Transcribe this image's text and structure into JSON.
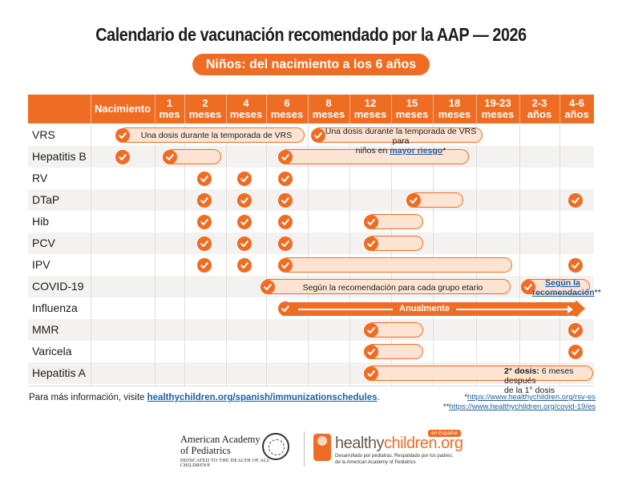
{
  "title": "Calendario de vacunación recomendado por la AAP — 2026",
  "subtitle": "Niños: del nacimiento a los 6 años",
  "columns": [
    {
      "line1": "Nacimiento",
      "line2": ""
    },
    {
      "line1": "1",
      "line2": "mes"
    },
    {
      "line1": "2",
      "line2": "meses"
    },
    {
      "line1": "4",
      "line2": "meses"
    },
    {
      "line1": "6",
      "line2": "meses"
    },
    {
      "line1": "8",
      "line2": "meses"
    },
    {
      "line1": "12",
      "line2": "meses"
    },
    {
      "line1": "15",
      "line2": "meses"
    },
    {
      "line1": "18",
      "line2": "meses"
    },
    {
      "line1": "19-23",
      "line2": "meses"
    },
    {
      "line1": "2-3",
      "line2": "años"
    },
    {
      "line1": "4-6",
      "line2": "años"
    }
  ],
  "vaccines": [
    "VRS",
    "Hepatitis B",
    "RV",
    "DTaP",
    "Hib",
    "PCV",
    "IPV",
    "COVID-19",
    "Influenza",
    "MMR",
    "Varicela",
    "Hepatitis A"
  ],
  "bar_notes": {
    "vrs_1": "Una dosis durante la temporada de VRS",
    "vrs_2_line1": "Una dosis durante la temporada de VRS para",
    "vrs_2_prefix": "niños en ",
    "vrs_2_link": "mayor riesgo",
    "vrs_2_suffix": "*",
    "covid_1": "Según la recomendación para cada grupo etario",
    "covid_2_line1": "Según la",
    "covid_2_line2": "recomendación",
    "covid_2_suffix": "**",
    "influenza": "Anualmente",
    "hepa_bold": "2° dosis:",
    "hepa_rest": " 6 meses después",
    "hepa_line2": "de la 1° dosis"
  },
  "footer": {
    "info_prefix": "Para más información, visite ",
    "info_link": "healthychildren.org/spanish/immunizationschedules",
    "info_suffix": ".",
    "note1_mark": "*",
    "note1_url": "https://www.healthychildren.org/rsv-es",
    "note2_mark": "**",
    "note2_url": "https://www.healthychildren.org/covid-19/es"
  },
  "logos": {
    "aap_line1": "American Academy",
    "aap_line2": "of Pediatrics",
    "aap_tagline": "DEDICATED TO THE HEALTH OF ALL CHILDREN®",
    "hc_part1": "healthy",
    "hc_part2": "children.org",
    "hc_badge": "en Español",
    "hc_tag_line1": "Desarrollado por pediatras. Respaldado por los padres.",
    "hc_tag_line2": "de la American Academy of Pediatrics"
  },
  "colors": {
    "accent": "#ef6c23",
    "bar_fill": "#fde4d2",
    "link": "#1f5fa0",
    "row_alt": "#f3f2f0"
  }
}
